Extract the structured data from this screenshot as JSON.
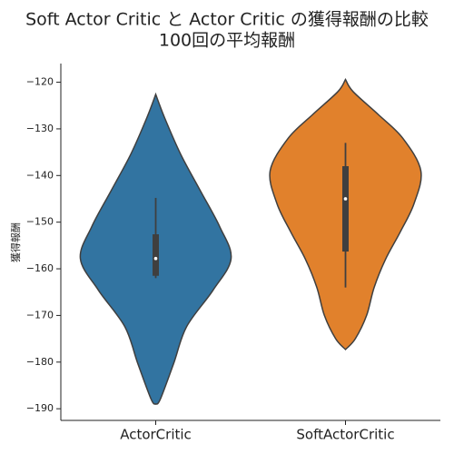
{
  "chart_data": {
    "type": "violin",
    "title": "Soft Actor Critic と Actor Critic の獲得報酬の比較",
    "subtitle": "100回の平均報酬",
    "y_label": "獲得報酬",
    "categories": [
      "ActorCritic",
      "SoftActorCritic"
    ],
    "colors": [
      "#3274a1",
      "#e1812c"
    ],
    "violins": [
      {
        "kde_y": [
          -122.6,
          -127.7,
          -135.4,
          -143.2,
          -151,
          -157.8,
          -164.6,
          -172.4,
          -180.2,
          -188,
          -189
        ],
        "kde_width": [
          0,
          0.12,
          0.33,
          0.59,
          0.85,
          1,
          0.76,
          0.41,
          0.24,
          0.06,
          0
        ],
        "whisker_low": -162,
        "q1": -161.5,
        "median": -157.8,
        "q3": -152.6,
        "whisker_high": -144.8
      },
      {
        "kde_y": [
          -119.4,
          -122,
          -127,
          -132,
          -139,
          -146,
          -152,
          -158,
          -164,
          -170,
          -175,
          -177.3
        ],
        "kde_width": [
          0,
          0.1,
          0.44,
          0.76,
          1,
          0.91,
          0.73,
          0.53,
          0.38,
          0.28,
          0.13,
          0
        ],
        "whisker_low": -164,
        "q1": -156.3,
        "median": -145,
        "q3": -138,
        "whisker_high": -133
      }
    ],
    "ylim": [
      -192.5,
      -116
    ],
    "yticks": [
      {
        "value": -190,
        "label": "−190"
      },
      {
        "value": -180,
        "label": "−180"
      },
      {
        "value": -170,
        "label": "−170"
      },
      {
        "value": -160,
        "label": "−160"
      },
      {
        "value": -150,
        "label": "−150"
      },
      {
        "value": -140,
        "label": "−140"
      },
      {
        "value": -130,
        "label": "−130"
      },
      {
        "value": -120,
        "label": "−120"
      }
    ]
  }
}
